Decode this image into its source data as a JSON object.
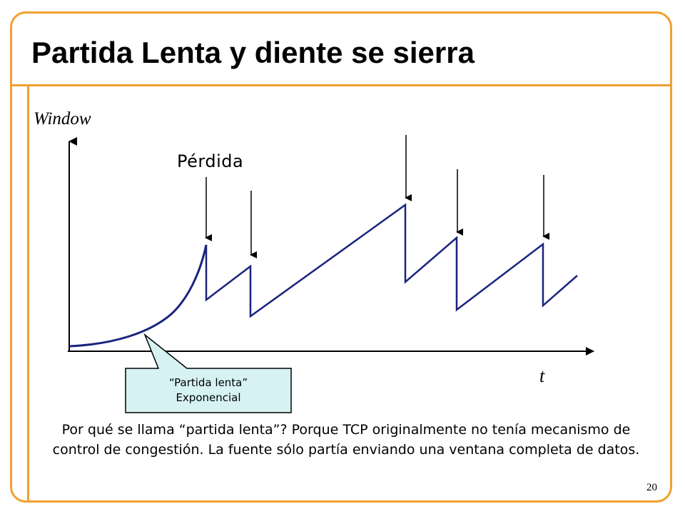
{
  "title": "Partida Lenta y diente se sierra",
  "axes": {
    "y_label": "Window",
    "x_label": "t"
  },
  "loss_label": "Pérdida",
  "callout": {
    "line1": "“Partida lenta”",
    "line2": "Exponencial"
  },
  "caption": "Por qué se llama “partida lenta”? Porque TCP originalmente no tenía mecanismo de control de congestión. La fuente sólo partía enviando una ventana completa de datos.",
  "page_number": "20",
  "colors": {
    "frame": "#f0a030",
    "curve": "#1a237e",
    "callout_fill": "#d6f2f2"
  }
}
